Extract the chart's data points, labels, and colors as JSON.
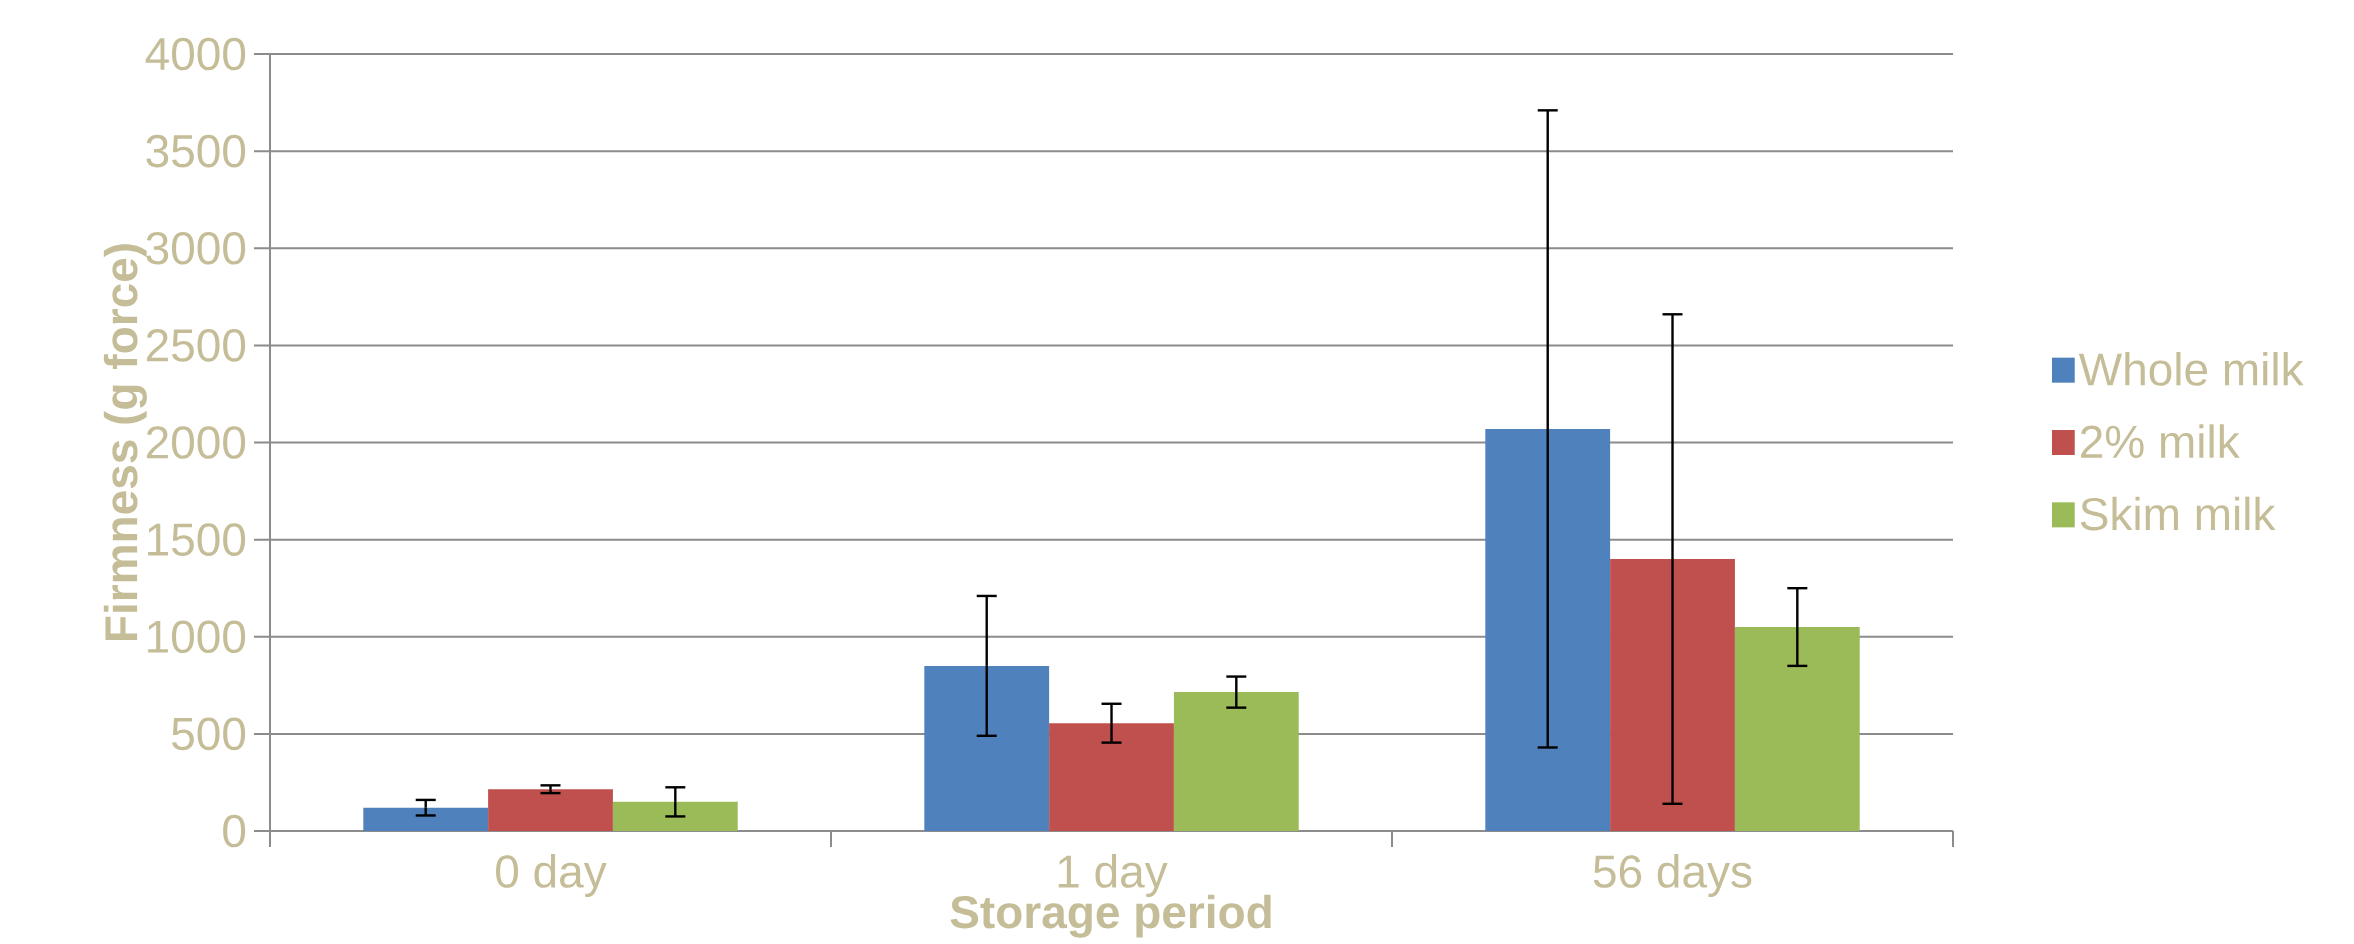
{
  "chart_data": {
    "type": "bar",
    "xlabel": "Storage period",
    "ylabel": "Firmness (g force)",
    "categories": [
      "0 day",
      "1 day",
      "56 days"
    ],
    "series": [
      {
        "name": "Whole milk",
        "color": "#4f81bd",
        "values": [
          120,
          850,
          2070
        ],
        "errors": [
          40,
          360,
          1640
        ]
      },
      {
        "name": "2% milk",
        "color": "#c0504d",
        "values": [
          215,
          555,
          1400
        ],
        "errors": [
          20,
          100,
          1260
        ]
      },
      {
        "name": "Skim milk",
        "color": "#9bbb59",
        "values": [
          150,
          715,
          1050
        ],
        "errors": [
          75,
          80,
          200
        ]
      }
    ],
    "ylim": [
      0,
      4000
    ],
    "yticks": [
      0,
      500,
      1000,
      1500,
      2000,
      2500,
      3000,
      3500,
      4000
    ],
    "grid": "y",
    "legend": "right"
  }
}
